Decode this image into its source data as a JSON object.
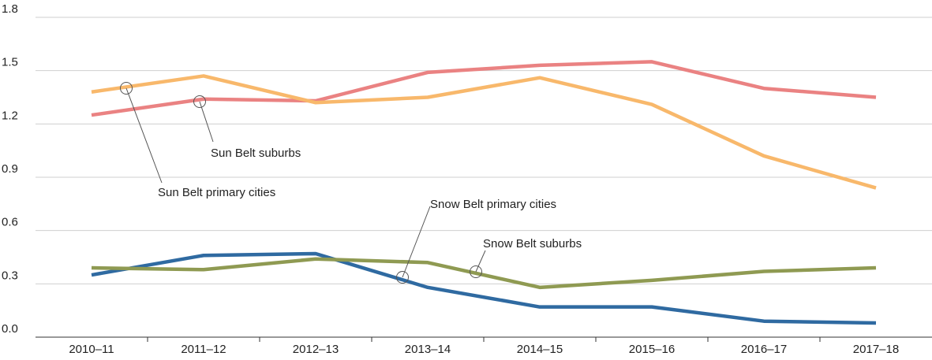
{
  "chart_data": {
    "type": "line",
    "categories": [
      "2010–11",
      "2011–12",
      "2012–13",
      "2013–14",
      "2014–15",
      "2015–16",
      "2016–17",
      "2017–18"
    ],
    "series": [
      {
        "name": "Sun Belt suburbs",
        "color": "#ea8282",
        "values": [
          1.25,
          1.34,
          1.33,
          1.49,
          1.53,
          1.55,
          1.4,
          1.35
        ]
      },
      {
        "name": "Sun Belt primary cities",
        "color": "#f8b86b",
        "values": [
          1.38,
          1.47,
          1.32,
          1.35,
          1.46,
          1.31,
          1.02,
          0.84
        ]
      },
      {
        "name": "Snow Belt primary cities",
        "color": "#2f6aa1",
        "values": [
          0.35,
          0.46,
          0.47,
          0.28,
          0.17,
          0.17,
          0.09,
          0.08
        ]
      },
      {
        "name": "Snow Belt suburbs",
        "color": "#8f9a52",
        "values": [
          0.39,
          0.38,
          0.44,
          0.42,
          0.28,
          0.32,
          0.37,
          0.39
        ]
      }
    ],
    "ylim": [
      0,
      1.8
    ],
    "yticks": [
      {
        "value": 0,
        "label": "0.0"
      },
      0.3,
      0.6,
      0.9,
      1.2,
      1.5,
      1.8
    ],
    "grid": true
  }
}
